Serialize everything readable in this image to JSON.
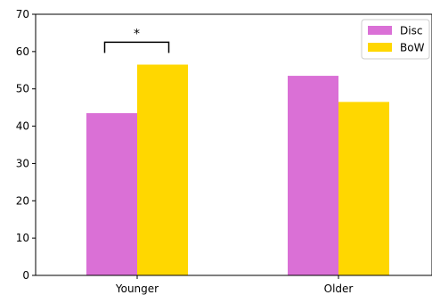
{
  "chart_data": {
    "type": "bar",
    "categories": [
      "Younger",
      "Older"
    ],
    "series": [
      {
        "name": "Disc",
        "values": [
          43.5,
          53.5
        ],
        "color": "#DA70D6"
      },
      {
        "name": "BoW",
        "values": [
          56.5,
          46.5
        ],
        "color": "#FFD700"
      }
    ],
    "ylim": [
      0,
      70
    ],
    "yticks": [
      0,
      10,
      20,
      30,
      40,
      50,
      60,
      70
    ],
    "title": "",
    "xlabel": "",
    "ylabel": "",
    "grid": false,
    "legend": {
      "position": "top-right"
    },
    "annotations": [
      {
        "type": "significance-bracket",
        "category": "Younger",
        "label": "*",
        "y": 62.5
      }
    ]
  }
}
